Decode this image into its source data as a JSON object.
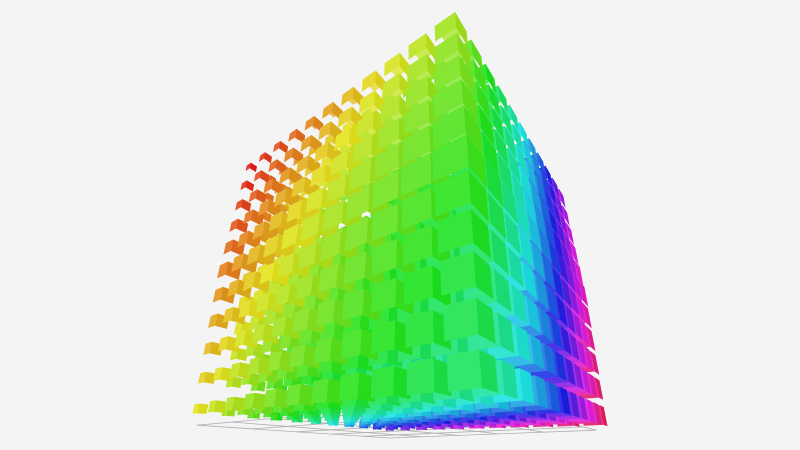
{
  "chart_data": {
    "type": "scatter3D",
    "symbol": "cube",
    "grid": true,
    "color_mapping": "hue",
    "title": "",
    "xlabel": "",
    "ylabel": "",
    "zlabel": ""
  },
  "colors": {
    "background": "#f4f4f4",
    "grid_line": "#b0b0b0"
  }
}
